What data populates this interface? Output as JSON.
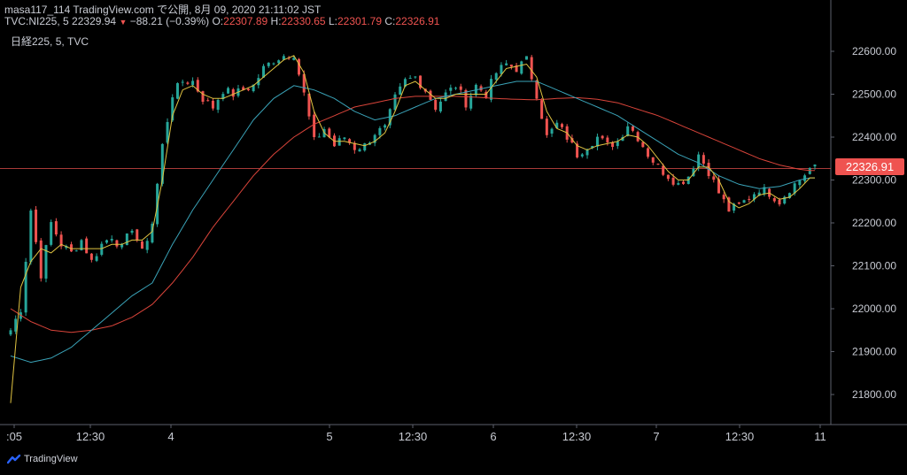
{
  "header": {
    "line1": "masa117_114 TradingView.com で公開, 8月 09, 2020 21:11:02 JST",
    "symbol_prefix": "TVC:NI225, 5",
    "price": "22329.94",
    "change_arrow": "▼",
    "change": "−88.21 (−0.39%)",
    "o_label": "O:",
    "o_value": "22307.89",
    "h_label": "H:",
    "h_value": "22330.65",
    "l_label": "L:",
    "l_value": "22301.79",
    "c_label": "C:",
    "c_value": "22326.91"
  },
  "symbol_label": "日経225, 5, TVC",
  "brand": {
    "name": "TradingView",
    "logo_icon": "tradingview-logo-icon"
  },
  "price_badge": "22326.91",
  "colors": {
    "up": "#26a69a",
    "down": "#ef5350",
    "ma_fast": "#e0c341",
    "ma_mid": "#3aa3b8",
    "ma_slow": "#d9443a",
    "last_price_line": "#ef5350",
    "background": "#000000",
    "axis": "#5d606b"
  },
  "chart_data": {
    "type": "candlestick",
    "title": "",
    "ylim": [
      21750,
      22650
    ],
    "y_ticks": [
      "22600.00",
      "22500.00",
      "22400.00",
      "22300.00",
      "22200.00",
      "22100.00",
      "22000.00",
      "21900.00",
      "21800.00"
    ],
    "x_ticks": [
      ":05",
      "12:30",
      "4",
      "5",
      "12:30",
      "6",
      "12:30",
      "7",
      "12:30",
      "11"
    ],
    "last_price": 22326.91,
    "grid": false,
    "close_path": [
      [
        0,
        21950
      ],
      [
        2,
        22000
      ],
      [
        4,
        22230
      ],
      [
        6,
        22080
      ],
      [
        8,
        22200
      ],
      [
        10,
        22150
      ],
      [
        12,
        22130
      ],
      [
        14,
        22160
      ],
      [
        16,
        22110
      ],
      [
        18,
        22150
      ],
      [
        20,
        22170
      ],
      [
        22,
        22140
      ],
      [
        24,
        22190
      ],
      [
        26,
        22130
      ],
      [
        28,
        22200
      ],
      [
        30,
        22380
      ],
      [
        32,
        22500
      ],
      [
        34,
        22530
      ],
      [
        36,
        22530
      ],
      [
        38,
        22490
      ],
      [
        40,
        22470
      ],
      [
        42,
        22510
      ],
      [
        44,
        22500
      ],
      [
        46,
        22510
      ],
      [
        48,
        22520
      ],
      [
        50,
        22560
      ],
      [
        52,
        22580
      ],
      [
        54,
        22590
      ],
      [
        56,
        22595
      ],
      [
        58,
        22500
      ],
      [
        60,
        22390
      ],
      [
        62,
        22420
      ],
      [
        64,
        22380
      ],
      [
        66,
        22400
      ],
      [
        68,
        22375
      ],
      [
        70,
        22380
      ],
      [
        72,
        22410
      ],
      [
        74,
        22420
      ],
      [
        76,
        22490
      ],
      [
        78,
        22530
      ],
      [
        80,
        22540
      ],
      [
        82,
        22510
      ],
      [
        84,
        22470
      ],
      [
        86,
        22500
      ],
      [
        88,
        22520
      ],
      [
        90,
        22480
      ],
      [
        92,
        22520
      ],
      [
        94,
        22500
      ],
      [
        96,
        22550
      ],
      [
        98,
        22570
      ],
      [
        100,
        22560
      ],
      [
        102,
        22580
      ],
      [
        104,
        22500
      ],
      [
        106,
        22400
      ],
      [
        108,
        22430
      ],
      [
        110,
        22400
      ],
      [
        112,
        22360
      ],
      [
        114,
        22380
      ],
      [
        116,
        22400
      ],
      [
        118,
        22380
      ],
      [
        120,
        22390
      ],
      [
        122,
        22430
      ],
      [
        124,
        22400
      ],
      [
        126,
        22360
      ],
      [
        128,
        22330
      ],
      [
        130,
        22310
      ],
      [
        132,
        22290
      ],
      [
        134,
        22310
      ],
      [
        136,
        22360
      ],
      [
        138,
        22320
      ],
      [
        140,
        22270
      ],
      [
        142,
        22230
      ],
      [
        144,
        22240
      ],
      [
        146,
        22260
      ],
      [
        148,
        22280
      ],
      [
        150,
        22270
      ],
      [
        152,
        22250
      ],
      [
        154,
        22280
      ],
      [
        156,
        22300
      ],
      [
        158,
        22327
      ]
    ],
    "ma_fast": [
      [
        0,
        21780
      ],
      [
        2,
        22050
      ],
      [
        4,
        22110
      ],
      [
        6,
        22140
      ],
      [
        8,
        22130
      ],
      [
        10,
        22150
      ],
      [
        12,
        22140
      ],
      [
        14,
        22140
      ],
      [
        16,
        22140
      ],
      [
        18,
        22140
      ],
      [
        20,
        22150
      ],
      [
        22,
        22150
      ],
      [
        24,
        22160
      ],
      [
        26,
        22160
      ],
      [
        28,
        22180
      ],
      [
        30,
        22300
      ],
      [
        32,
        22450
      ],
      [
        34,
        22510
      ],
      [
        36,
        22520
      ],
      [
        38,
        22500
      ],
      [
        40,
        22490
      ],
      [
        42,
        22490
      ],
      [
        44,
        22500
      ],
      [
        46,
        22510
      ],
      [
        48,
        22520
      ],
      [
        50,
        22540
      ],
      [
        52,
        22560
      ],
      [
        54,
        22580
      ],
      [
        56,
        22590
      ],
      [
        58,
        22550
      ],
      [
        60,
        22460
      ],
      [
        62,
        22410
      ],
      [
        64,
        22390
      ],
      [
        66,
        22390
      ],
      [
        68,
        22385
      ],
      [
        70,
        22380
      ],
      [
        72,
        22390
      ],
      [
        74,
        22410
      ],
      [
        76,
        22460
      ],
      [
        78,
        22520
      ],
      [
        80,
        22530
      ],
      [
        82,
        22510
      ],
      [
        84,
        22490
      ],
      [
        86,
        22490
      ],
      [
        88,
        22500
      ],
      [
        90,
        22500
      ],
      [
        92,
        22500
      ],
      [
        94,
        22500
      ],
      [
        96,
        22530
      ],
      [
        98,
        22560
      ],
      [
        100,
        22565
      ],
      [
        102,
        22570
      ],
      [
        104,
        22540
      ],
      [
        106,
        22460
      ],
      [
        108,
        22420
      ],
      [
        110,
        22410
      ],
      [
        112,
        22380
      ],
      [
        114,
        22370
      ],
      [
        116,
        22380
      ],
      [
        118,
        22385
      ],
      [
        120,
        22390
      ],
      [
        122,
        22405
      ],
      [
        124,
        22400
      ],
      [
        126,
        22380
      ],
      [
        128,
        22350
      ],
      [
        130,
        22320
      ],
      [
        132,
        22300
      ],
      [
        134,
        22300
      ],
      [
        136,
        22330
      ],
      [
        138,
        22330
      ],
      [
        140,
        22300
      ],
      [
        142,
        22250
      ],
      [
        144,
        22235
      ],
      [
        146,
        22245
      ],
      [
        148,
        22265
      ],
      [
        150,
        22270
      ],
      [
        152,
        22255
      ],
      [
        154,
        22260
      ],
      [
        156,
        22280
      ],
      [
        158,
        22305
      ]
    ],
    "ma_mid": [
      [
        0,
        21890
      ],
      [
        4,
        21875
      ],
      [
        8,
        21885
      ],
      [
        12,
        21910
      ],
      [
        16,
        21950
      ],
      [
        20,
        21990
      ],
      [
        24,
        22030
      ],
      [
        28,
        22060
      ],
      [
        32,
        22150
      ],
      [
        36,
        22230
      ],
      [
        40,
        22300
      ],
      [
        44,
        22370
      ],
      [
        48,
        22440
      ],
      [
        52,
        22490
      ],
      [
        56,
        22520
      ],
      [
        60,
        22510
      ],
      [
        64,
        22490
      ],
      [
        68,
        22460
      ],
      [
        72,
        22440
      ],
      [
        76,
        22450
      ],
      [
        80,
        22470
      ],
      [
        84,
        22490
      ],
      [
        88,
        22500
      ],
      [
        92,
        22510
      ],
      [
        96,
        22520
      ],
      [
        100,
        22530
      ],
      [
        104,
        22530
      ],
      [
        108,
        22510
      ],
      [
        112,
        22490
      ],
      [
        116,
        22470
      ],
      [
        120,
        22450
      ],
      [
        124,
        22420
      ],
      [
        128,
        22390
      ],
      [
        132,
        22360
      ],
      [
        136,
        22340
      ],
      [
        140,
        22310
      ],
      [
        144,
        22290
      ],
      [
        148,
        22280
      ],
      [
        152,
        22285
      ],
      [
        156,
        22300
      ],
      [
        158,
        22305
      ]
    ],
    "ma_slow": [
      [
        0,
        22000
      ],
      [
        4,
        21970
      ],
      [
        8,
        21950
      ],
      [
        12,
        21945
      ],
      [
        16,
        21950
      ],
      [
        20,
        21960
      ],
      [
        24,
        21980
      ],
      [
        28,
        22010
      ],
      [
        32,
        22060
      ],
      [
        36,
        22120
      ],
      [
        40,
        22190
      ],
      [
        44,
        22250
      ],
      [
        48,
        22310
      ],
      [
        52,
        22360
      ],
      [
        56,
        22400
      ],
      [
        60,
        22430
      ],
      [
        64,
        22450
      ],
      [
        68,
        22470
      ],
      [
        72,
        22480
      ],
      [
        76,
        22490
      ],
      [
        80,
        22495
      ],
      [
        84,
        22495
      ],
      [
        88,
        22495
      ],
      [
        92,
        22493
      ],
      [
        96,
        22490
      ],
      [
        100,
        22488
      ],
      [
        104,
        22487
      ],
      [
        108,
        22490
      ],
      [
        112,
        22492
      ],
      [
        116,
        22488
      ],
      [
        120,
        22480
      ],
      [
        124,
        22465
      ],
      [
        128,
        22450
      ],
      [
        132,
        22430
      ],
      [
        136,
        22410
      ],
      [
        140,
        22390
      ],
      [
        144,
        22370
      ],
      [
        148,
        22350
      ],
      [
        152,
        22335
      ],
      [
        156,
        22325
      ],
      [
        158,
        22322
      ]
    ]
  }
}
